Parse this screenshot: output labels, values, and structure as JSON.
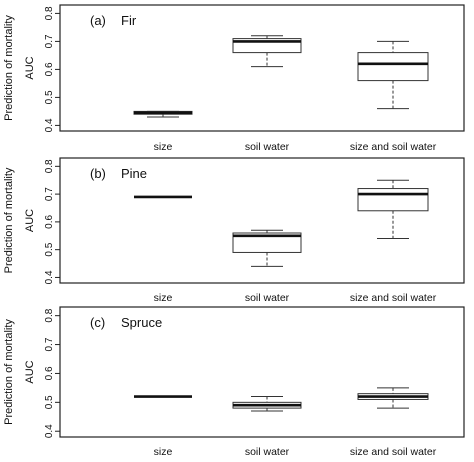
{
  "figure": {
    "y_outer_label": "Prediction of mortality",
    "y_axis_label": "AUC"
  },
  "chart_data": [
    {
      "type": "boxplot",
      "panel_label": "(a)",
      "title": "Fir",
      "xlabel": "",
      "ylabel": "AUC",
      "ylim": [
        0.38,
        0.83
      ],
      "yticks": [
        0.4,
        0.5,
        0.6,
        0.7,
        0.8
      ],
      "ytick_labels": [
        "0.4",
        "0.5",
        "0.6",
        "0.7",
        "0.8"
      ],
      "grid": false,
      "categories": [
        "size",
        "soil water",
        "size and soil water"
      ],
      "boxes": [
        {
          "category": "size",
          "min": 0.43,
          "q1": 0.44,
          "median": 0.445,
          "q3": 0.45,
          "max": 0.45
        },
        {
          "category": "soil water",
          "min": 0.61,
          "q1": 0.66,
          "median": 0.7,
          "q3": 0.71,
          "max": 0.72
        },
        {
          "category": "size and soil water",
          "min": 0.46,
          "q1": 0.56,
          "median": 0.62,
          "q3": 0.66,
          "max": 0.7
        }
      ]
    },
    {
      "type": "boxplot",
      "panel_label": "(b)",
      "title": "Pine",
      "xlabel": "",
      "ylabel": "AUC",
      "ylim": [
        0.38,
        0.83
      ],
      "yticks": [
        0.4,
        0.5,
        0.6,
        0.7,
        0.8
      ],
      "ytick_labels": [
        "0.4",
        "0.5",
        "0.6",
        "0.7",
        "0.8"
      ],
      "grid": false,
      "categories": [
        "size",
        "soil water",
        "size and soil water"
      ],
      "boxes": [
        {
          "category": "size",
          "min": 0.69,
          "q1": 0.69,
          "median": 0.69,
          "q3": 0.69,
          "max": 0.69
        },
        {
          "category": "soil water",
          "min": 0.44,
          "q1": 0.49,
          "median": 0.55,
          "q3": 0.56,
          "max": 0.57
        },
        {
          "category": "size and soil water",
          "min": 0.54,
          "q1": 0.64,
          "median": 0.7,
          "q3": 0.72,
          "max": 0.75
        }
      ]
    },
    {
      "type": "boxplot",
      "panel_label": "(c)",
      "title": "Spruce",
      "xlabel": "",
      "ylabel": "AUC",
      "ylim": [
        0.38,
        0.83
      ],
      "yticks": [
        0.4,
        0.5,
        0.6,
        0.7,
        0.8
      ],
      "ytick_labels": [
        "0.4",
        "0.5",
        "0.6",
        "0.7",
        "0.8"
      ],
      "grid": false,
      "categories": [
        "size",
        "soil water",
        "size and soil water"
      ],
      "boxes": [
        {
          "category": "size",
          "min": 0.52,
          "q1": 0.52,
          "median": 0.52,
          "q3": 0.52,
          "max": 0.52
        },
        {
          "category": "soil water",
          "min": 0.47,
          "q1": 0.48,
          "median": 0.49,
          "q3": 0.5,
          "max": 0.52
        },
        {
          "category": "size and soil water",
          "min": 0.48,
          "q1": 0.51,
          "median": 0.52,
          "q3": 0.53,
          "max": 0.55
        }
      ]
    }
  ]
}
